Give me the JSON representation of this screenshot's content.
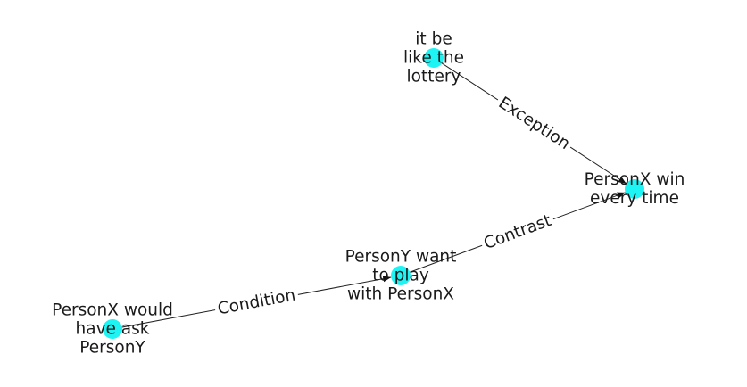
{
  "colors": {
    "node": "#1ff4f4",
    "edge": "#222222",
    "text": "#1a1a1a"
  },
  "nodes": [
    {
      "id": "n1",
      "lines": [
        "it be",
        "like the",
        "lottery"
      ]
    },
    {
      "id": "n2",
      "lines": [
        "PersonX win",
        "every time"
      ]
    },
    {
      "id": "n3",
      "lines": [
        "PersonY want",
        "to play",
        "with PersonX"
      ]
    },
    {
      "id": "n4",
      "lines": [
        "PersonX would",
        "have ask",
        "PersonY"
      ]
    }
  ],
  "edges": [
    {
      "id": "e1",
      "source": "n1",
      "target": "n2",
      "label": "Exception"
    },
    {
      "id": "e2",
      "source": "n3",
      "target": "n2",
      "label": "Contrast"
    },
    {
      "id": "e3",
      "source": "n4",
      "target": "n3",
      "label": "Condition"
    }
  ]
}
